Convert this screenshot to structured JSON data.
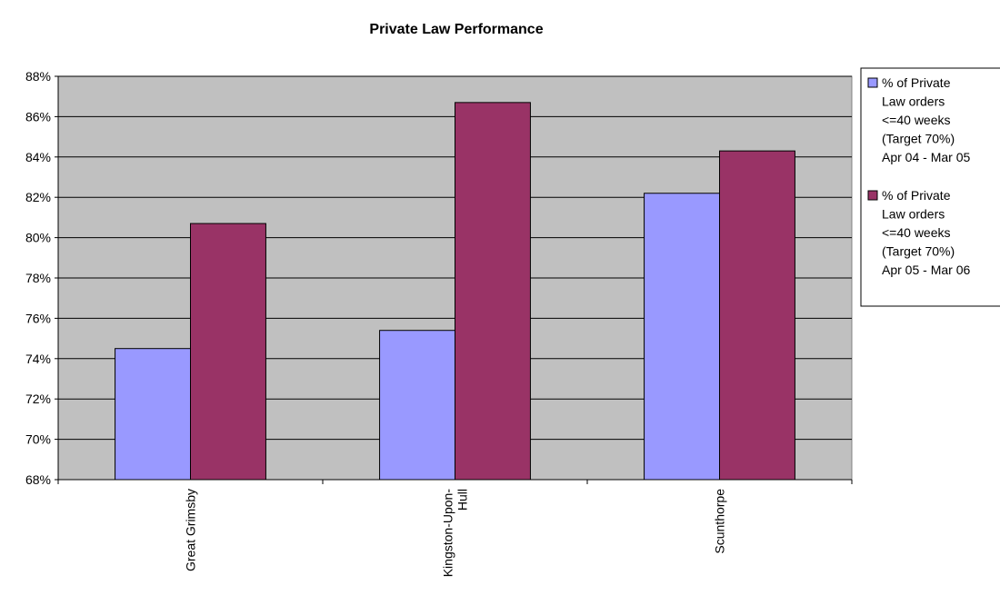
{
  "chart_data": {
    "type": "bar",
    "title": "Private Law Performance",
    "xlabel": "",
    "ylabel": "",
    "categories": [
      "Great Grimsby",
      "Kingston-Upon-Hull",
      "Scunthorpe"
    ],
    "category_label_lines": [
      [
        "Great Grimsby"
      ],
      [
        "Kingston-Upon-",
        "Hull"
      ],
      [
        "Scunthorpe"
      ]
    ],
    "series": [
      {
        "name": "% of Private Law orders <=40 weeks (Target 70%) Apr 04 - Mar 05",
        "legend_lines": [
          "% of Private",
          "Law orders",
          "<=40 weeks",
          "(Target 70%)",
          "Apr 04 - Mar 05"
        ],
        "color": "#9999ff",
        "values": [
          74.5,
          75.4,
          82.2
        ]
      },
      {
        "name": "% of Private Law orders <=40 weeks (Target 70%) Apr 05 - Mar 06",
        "legend_lines": [
          "% of Private",
          "Law orders",
          "<=40 weeks",
          "(Target 70%)",
          "Apr 05 - Mar 06"
        ],
        "color": "#993366",
        "values": [
          80.7,
          86.7,
          84.3
        ]
      }
    ],
    "ylim": [
      68,
      88
    ],
    "yticks": [
      68,
      70,
      72,
      74,
      76,
      78,
      80,
      82,
      84,
      86,
      88
    ],
    "ytick_labels": [
      "68%",
      "70%",
      "72%",
      "74%",
      "76%",
      "78%",
      "80%",
      "82%",
      "84%",
      "86%",
      "88%"
    ],
    "grid": true,
    "plot_background": "#c0c0c0",
    "legend_position": "right"
  }
}
